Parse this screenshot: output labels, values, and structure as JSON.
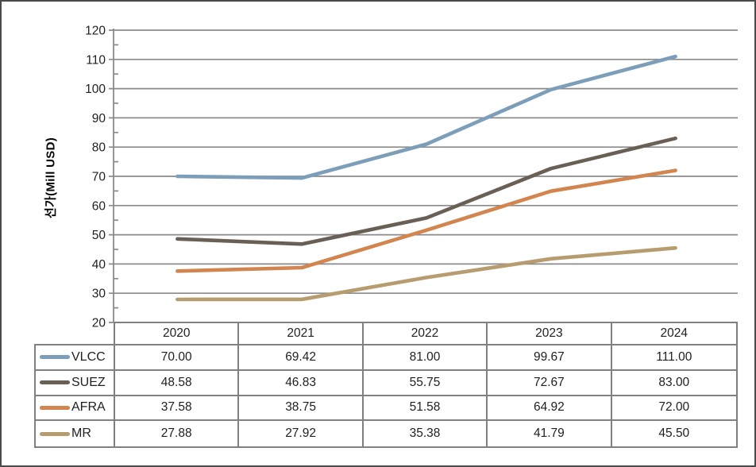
{
  "chart_data": {
    "type": "line",
    "title": "",
    "xlabel": "",
    "ylabel": "선가(Mill USD)",
    "categories": [
      "2020",
      "2021",
      "2022",
      "2023",
      "2024"
    ],
    "series": [
      {
        "name": "VLCC",
        "color": "#7D9EB9",
        "values": [
          70.0,
          69.42,
          81.0,
          99.67,
          111.0
        ]
      },
      {
        "name": "SUEZ",
        "color": "#6A5F55",
        "values": [
          48.58,
          46.83,
          55.75,
          72.67,
          83.0
        ]
      },
      {
        "name": "AFRA",
        "color": "#D2854E",
        "values": [
          37.58,
          38.75,
          51.58,
          64.92,
          72.0
        ]
      },
      {
        "name": "MR",
        "color": "#B69C6E",
        "values": [
          27.88,
          27.92,
          35.38,
          41.79,
          45.5
        ]
      }
    ],
    "ylim": [
      20,
      120
    ],
    "ytick_step": 10,
    "yminor_step": 5,
    "grid": true,
    "legend_position": "table-left",
    "value_decimals": 2
  },
  "colors": {
    "gridline": "#8a8a8a",
    "axis": "#8a8a8a",
    "table_border": "#808080",
    "frame_border": "#4a4a4a",
    "text": "#1f1f1f"
  }
}
